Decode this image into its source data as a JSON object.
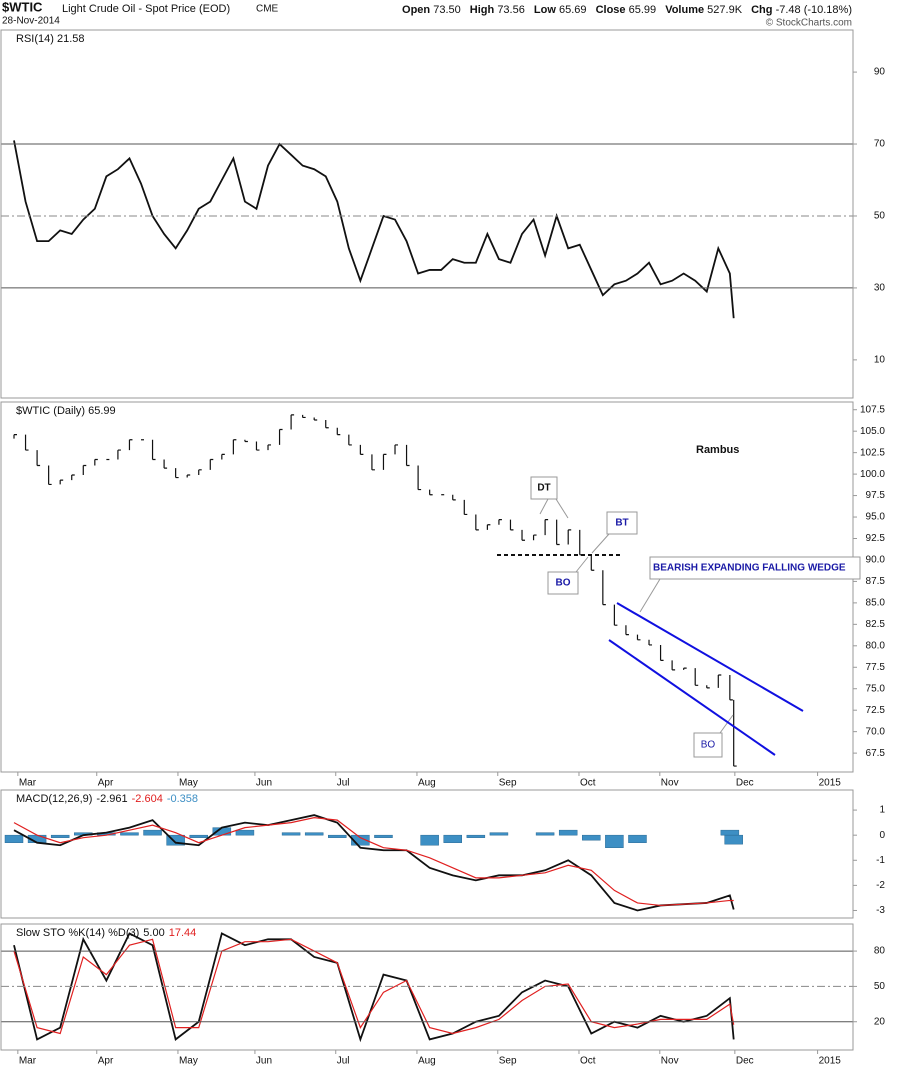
{
  "header": {
    "symbol": "$WTIC",
    "name": "Light Crude Oil - Spot Price (EOD)",
    "exchange": "CME",
    "date": "28-Nov-2014",
    "copyright": "© StockCharts.com",
    "quote": [
      {
        "label": "Open",
        "value": "73.50"
      },
      {
        "label": "High",
        "value": "73.56"
      },
      {
        "label": "Low",
        "value": "65.69"
      },
      {
        "label": "Close",
        "value": "65.99"
      },
      {
        "label": "Volume",
        "value": "527.9K"
      },
      {
        "label": "Chg",
        "value": "-7.48 (-10.18%)"
      }
    ]
  },
  "chart_data": [
    {
      "type": "line",
      "title": "RSI(14) 21.58",
      "grid": "inner",
      "xlim": [
        0,
        218
      ],
      "ylim": [
        -0.6,
        101.7
      ],
      "yticks": [
        90,
        70,
        50,
        30,
        10
      ],
      "x": [
        0,
        3,
        6,
        9,
        12,
        15,
        18,
        21,
        24,
        27,
        30,
        33,
        36,
        39,
        42,
        45,
        48,
        51,
        54,
        57,
        60,
        63,
        66,
        69,
        72,
        75,
        78,
        81,
        84,
        87,
        90,
        93,
        96,
        99,
        102,
        105,
        108,
        111,
        114,
        117,
        120,
        123,
        126,
        129,
        132,
        135,
        138,
        141,
        144,
        147,
        150,
        153,
        156,
        159,
        162,
        165,
        168,
        171,
        174,
        177,
        180,
        183,
        186,
        187
      ],
      "series": [
        {
          "color": "#111111",
          "values": [
            71,
            54,
            43,
            43,
            46,
            45,
            49,
            52,
            61,
            63,
            66,
            59,
            50,
            45,
            41,
            46,
            52,
            54,
            60,
            66,
            54,
            52,
            64,
            70,
            67,
            64,
            63,
            61,
            54,
            41,
            32,
            41,
            50,
            49,
            43,
            34,
            35,
            35,
            38,
            37,
            37,
            45,
            38,
            37,
            45,
            49,
            39,
            50,
            41,
            42,
            35,
            28,
            31,
            32,
            34,
            37,
            31,
            32,
            34,
            32,
            29,
            41,
            34,
            21.58
          ]
        }
      ]
    },
    {
      "type": "bar",
      "title": "$WTIC (Daily) 65.99",
      "grid": false,
      "color": "#111111",
      "xlim": [
        0,
        218
      ],
      "ylim": [
        65.3,
        108.4
      ],
      "yticks": [
        107.5,
        {
          "value": 105,
          "label": "105.0"
        },
        102.5,
        {
          "value": 100,
          "label": "100.0"
        },
        97.5,
        {
          "value": 95,
          "label": "95.0"
        },
        92.5,
        {
          "value": 90,
          "label": "90.0"
        },
        87.5,
        {
          "value": 85,
          "label": "85.0"
        },
        82.5,
        {
          "value": 80,
          "label": "80.0"
        },
        77.5,
        {
          "value": 75,
          "label": "75.0"
        },
        72.5,
        {
          "value": 70,
          "label": "70.0"
        },
        67.5
      ],
      "xticks": [
        {
          "value": 1,
          "label": "Mar"
        },
        {
          "value": 21.5,
          "label": "Apr"
        },
        {
          "value": 42.6,
          "label": "May"
        },
        {
          "value": 62.6,
          "label": "Jun"
        },
        {
          "value": 83.6,
          "label": "Jul"
        },
        {
          "value": 104.7,
          "label": "Aug"
        },
        {
          "value": 125.7,
          "label": "Sep"
        },
        {
          "value": 146.8,
          "label": "Oct"
        },
        {
          "value": 167.8,
          "label": "Nov"
        },
        {
          "value": 187.3,
          "label": "Dec"
        },
        {
          "value": 208.8,
          "label": "2015"
        }
      ],
      "x": [
        0,
        3,
        6,
        9,
        12,
        15,
        18,
        21,
        24,
        27,
        30,
        33,
        36,
        39,
        42,
        45,
        48,
        51,
        54,
        57,
        60,
        63,
        66,
        69,
        72,
        75,
        78,
        81,
        84,
        87,
        90,
        93,
        96,
        99,
        102,
        105,
        108,
        111,
        114,
        117,
        120,
        123,
        126,
        129,
        132,
        135,
        138,
        141,
        144,
        147,
        150,
        153,
        156,
        159,
        162,
        165,
        168,
        171,
        174,
        177,
        180,
        183,
        186,
        187
      ],
      "values": [
        104.6,
        102.8,
        101,
        98.8,
        99.3,
        99.9,
        101,
        101.7,
        101.7,
        102.8,
        104,
        104,
        101.7,
        100.7,
        99.6,
        99.9,
        100.5,
        101.7,
        102.3,
        104,
        103.8,
        102.8,
        103.4,
        105.2,
        106.9,
        106.6,
        106.3,
        105.4,
        104.6,
        103.4,
        102.3,
        100.5,
        102.3,
        103.4,
        101,
        98.2,
        97.6,
        97.6,
        97,
        95.3,
        93.5,
        94.1,
        94.7,
        93.5,
        92.3,
        92.9,
        94.7,
        91.8,
        93.5,
        90.6,
        88.8,
        84.8,
        82.4,
        81.3,
        80.7,
        80.1,
        78.3,
        77.2,
        77.4,
        75.4,
        75.1,
        76.6,
        73.7,
        65.99
      ],
      "annotations": [
        "Rambus",
        "DT",
        "BT",
        "BO",
        "BEARISH EXPANDING FALLING WEDGE",
        "BO"
      ]
    },
    {
      "type": "line",
      "title": "MACD(12,26,9)",
      "legend_values": [
        "-2.961",
        "-2.604",
        "-0.358"
      ],
      "grid": false,
      "xlim": [
        0,
        218
      ],
      "ylim": [
        -3.3,
        1.8
      ],
      "yticks": [
        1,
        0,
        -1,
        -2,
        -3
      ],
      "x": [
        0,
        6,
        12,
        18,
        24,
        30,
        36,
        42,
        48,
        54,
        60,
        66,
        72,
        78,
        84,
        90,
        96,
        102,
        108,
        114,
        120,
        126,
        132,
        138,
        144,
        150,
        156,
        162,
        168,
        174,
        180,
        186,
        187
      ],
      "series": [
        {
          "color": "#111111",
          "values": [
            0.2,
            -0.3,
            -0.4,
            0,
            0.1,
            0.3,
            0.6,
            -0.3,
            -0.4,
            0.3,
            0.5,
            0.4,
            0.6,
            0.8,
            0.5,
            -0.5,
            -0.6,
            -0.6,
            -1.3,
            -1.6,
            -1.8,
            -1.6,
            -1.6,
            -1.4,
            -1,
            -1.6,
            -2.7,
            -3,
            -2.8,
            -2.75,
            -2.7,
            -2.4,
            -2.961
          ]
        },
        {
          "color": "#e02020",
          "values": [
            0.5,
            0,
            -0.3,
            -0.1,
            0,
            0.2,
            0.4,
            0.1,
            -0.3,
            0,
            0.3,
            0.4,
            0.5,
            0.7,
            0.6,
            -0.1,
            -0.5,
            -0.6,
            -0.9,
            -1.3,
            -1.7,
            -1.7,
            -1.6,
            -1.5,
            -1.2,
            -1.4,
            -2.2,
            -2.7,
            -2.8,
            -2.75,
            -2.7,
            -2.6,
            -2.604
          ]
        }
      ],
      "histogram": {
        "color": "#3d8fc4",
        "values": [
          -0.3,
          -0.3,
          -0.1,
          0.1,
          0.1,
          0.1,
          0.2,
          -0.4,
          -0.1,
          0.3,
          0.2,
          0,
          0.1,
          0.1,
          -0.1,
          -0.4,
          -0.1,
          0,
          -0.4,
          -0.3,
          -0.1,
          0.1,
          0,
          0.1,
          0.2,
          -0.2,
          -0.5,
          -0.3,
          0,
          0,
          0,
          0.2,
          -0.358
        ]
      }
    },
    {
      "type": "line",
      "title": "Slow STO %K(14) %D(3)",
      "legend_values": [
        "5.00",
        "17.44"
      ],
      "grid": true,
      "xlim": [
        0,
        218
      ],
      "ylim": [
        -4,
        103
      ],
      "yticks": [
        80,
        50,
        20
      ],
      "xticks": [
        {
          "value": 1,
          "label": "Mar"
        },
        {
          "value": 21.5,
          "label": "Apr"
        },
        {
          "value": 42.6,
          "label": "May"
        },
        {
          "value": 62.6,
          "label": "Jun"
        },
        {
          "value": 83.6,
          "label": "Jul"
        },
        {
          "value": 104.7,
          "label": "Aug"
        },
        {
          "value": 125.7,
          "label": "Sep"
        },
        {
          "value": 146.8,
          "label": "Oct"
        },
        {
          "value": 167.8,
          "label": "Nov"
        },
        {
          "value": 187.3,
          "label": "Dec"
        },
        {
          "value": 208.8,
          "label": "2015"
        }
      ],
      "x": [
        0,
        6,
        12,
        18,
        24,
        30,
        36,
        42,
        48,
        54,
        60,
        66,
        72,
        78,
        84,
        90,
        96,
        102,
        108,
        114,
        120,
        126,
        132,
        138,
        144,
        150,
        156,
        162,
        168,
        174,
        180,
        186,
        187
      ],
      "series": [
        {
          "color": "#111111",
          "values": [
            85,
            5,
            15,
            90,
            55,
            95,
            85,
            5,
            20,
            95,
            85,
            90,
            90,
            75,
            70,
            5,
            60,
            55,
            5,
            10,
            20,
            25,
            45,
            55,
            50,
            10,
            20,
            15,
            25,
            20,
            25,
            40,
            5
          ]
        },
        {
          "color": "#e02020",
          "values": [
            80,
            15,
            10,
            75,
            60,
            85,
            90,
            15,
            15,
            80,
            88,
            88,
            90,
            80,
            70,
            15,
            45,
            55,
            15,
            10,
            15,
            22,
            38,
            50,
            52,
            20,
            15,
            18,
            22,
            22,
            22,
            35,
            17.44
          ]
        }
      ]
    }
  ]
}
